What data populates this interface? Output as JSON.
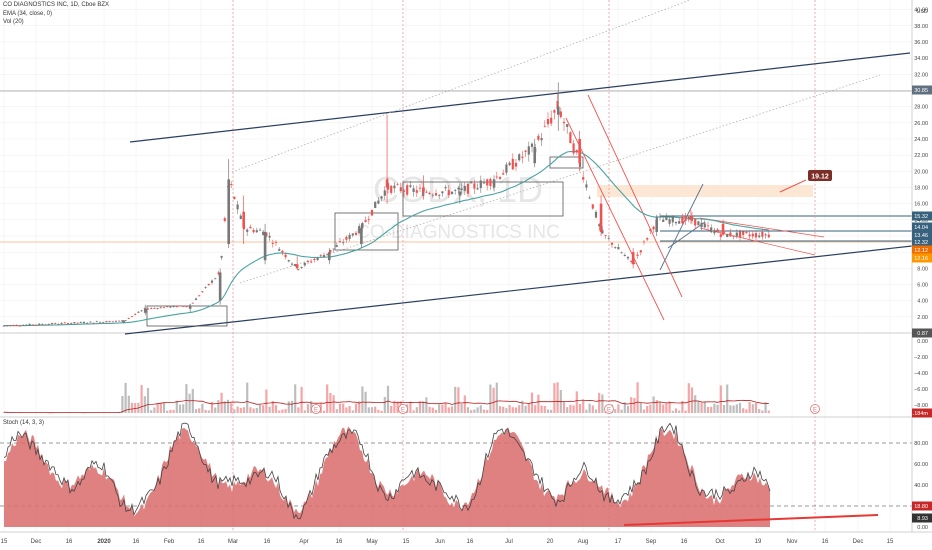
{
  "header": {
    "symbol_line": "CO DIAGNOSTICS INC, 1D, Cboe BZX",
    "ema_label": "EMA (34, close, 0)",
    "vol_label": "Vol (20)",
    "stoch_label": "Stoch (14, 3, 3)"
  },
  "watermark": {
    "ticker": "CODX, 1D",
    "name": "CO-DIAGNOSTICS INC"
  },
  "colors": {
    "grid": "#eeeeee",
    "trendline": "#2a3f5f",
    "ema": "#4aa3a2",
    "candle_up": "#777777",
    "candle_down": "#ef5350",
    "vol_up": "#bdbdbd",
    "vol_down": "#f4a6a6",
    "vol_ma": "#b71c1c",
    "stoch_fill": "#d96b6b",
    "stoch_k": "#444444",
    "stoch_trend": "#e53935",
    "zone": "#fbe3cc",
    "target_badge": "#7b2d26"
  },
  "chart_data": {
    "type": "candlestick",
    "title": "CO DIAGNOSTICS INC, 1D, Cboe BZX",
    "ylabel": "USD",
    "price_axis_ticks": [
      "2.00",
      "4.00",
      "6.00",
      "8.00",
      "10.00",
      "12.00",
      "14.00",
      "16.00",
      "18.00",
      "20.00",
      "22.00",
      "24.00",
      "26.00",
      "28.00",
      "30.00",
      "32.00",
      "34.00",
      "36.00",
      "38.00",
      "40.00",
      "42.00"
    ],
    "volume_axis_ticks": [
      "0.00",
      "−2.00",
      "−4.00",
      "−6.00",
      "−8.00"
    ],
    "stoch_axis_ticks": [
      "0.00",
      "20.00",
      "40.00",
      "60.00",
      "80.00"
    ],
    "stoch_levels": [
      20,
      80
    ],
    "x_tick_labels": [
      "15",
      "Dec",
      "16",
      "2020",
      "16",
      "Feb",
      "16",
      "Mar",
      "16",
      "Apr",
      "16",
      "May",
      "15",
      "Jun",
      "16",
      "Jul",
      "20",
      "Aug",
      "17",
      "Sep",
      "16",
      "Oct",
      "19",
      "Nov",
      "16",
      "Dec",
      "15"
    ],
    "price_labels": {
      "current_high": "30.85",
      "target": "19.12",
      "level_a": "15.32",
      "level_b": "14.04",
      "level_c": "13.46",
      "level_d": "12.32",
      "level_e": "12.12",
      "level_f": "12.16",
      "low": "0.87",
      "volume_last": "1.184m",
      "stoch_d": "18.80",
      "stoch_k": "8.93"
    },
    "earnings_markers": [
      "E",
      "E",
      "E",
      "E"
    ],
    "ohlc": [
      {
        "d": "2019-11-15",
        "o": 0.9,
        "h": 0.95,
        "l": 0.85,
        "c": 0.9
      },
      {
        "d": "2020-01-10",
        "o": 1.3,
        "h": 1.6,
        "l": 1.2,
        "c": 1.5
      },
      {
        "d": "2020-01-20",
        "o": 2.5,
        "h": 3.5,
        "l": 2.2,
        "c": 3.0
      },
      {
        "d": "2020-02-10",
        "o": 3.0,
        "h": 3.6,
        "l": 2.6,
        "c": 3.4
      },
      {
        "d": "2020-02-24",
        "o": 4.0,
        "h": 8.0,
        "l": 3.5,
        "c": 7.5
      },
      {
        "d": "2020-02-28",
        "o": 11.0,
        "h": 21.5,
        "l": 10.5,
        "c": 19.0
      },
      {
        "d": "2020-03-06",
        "o": 15.0,
        "h": 17.0,
        "l": 11.0,
        "c": 13.0
      },
      {
        "d": "2020-03-16",
        "o": 9.0,
        "h": 13.5,
        "l": 8.5,
        "c": 12.5
      },
      {
        "d": "2020-03-31",
        "o": 8.5,
        "h": 9.5,
        "l": 7.8,
        "c": 8.0
      },
      {
        "d": "2020-04-15",
        "o": 9.0,
        "h": 10.5,
        "l": 8.5,
        "c": 10.0
      },
      {
        "d": "2020-04-30",
        "o": 11.0,
        "h": 13.5,
        "l": 10.5,
        "c": 13.0
      },
      {
        "d": "2020-05-12",
        "o": 19.0,
        "h": 27.0,
        "l": 16.0,
        "c": 18.0
      },
      {
        "d": "2020-05-29",
        "o": 18.0,
        "h": 19.5,
        "l": 16.5,
        "c": 17.5
      },
      {
        "d": "2020-06-15",
        "o": 17.0,
        "h": 18.5,
        "l": 16.0,
        "c": 17.5
      },
      {
        "d": "2020-07-01",
        "o": 18.0,
        "h": 19.5,
        "l": 17.5,
        "c": 19.0
      },
      {
        "d": "2020-07-20",
        "o": 21.0,
        "h": 24.0,
        "l": 20.5,
        "c": 23.0
      },
      {
        "d": "2020-07-31",
        "o": 27.0,
        "h": 31.0,
        "l": 25.0,
        "c": 28.0
      },
      {
        "d": "2020-08-10",
        "o": 24.0,
        "h": 25.0,
        "l": 20.0,
        "c": 21.0
      },
      {
        "d": "2020-08-20",
        "o": 16.0,
        "h": 17.0,
        "l": 12.0,
        "c": 12.5
      },
      {
        "d": "2020-09-04",
        "o": 10.0,
        "h": 10.5,
        "l": 8.0,
        "c": 8.5
      },
      {
        "d": "2020-09-15",
        "o": 12.5,
        "h": 14.5,
        "l": 12.0,
        "c": 14.0
      },
      {
        "d": "2020-10-01",
        "o": 14.5,
        "h": 15.2,
        "l": 13.5,
        "c": 14.0
      },
      {
        "d": "2020-10-16",
        "o": 13.5,
        "h": 14.0,
        "l": 12.0,
        "c": 12.16
      }
    ]
  }
}
